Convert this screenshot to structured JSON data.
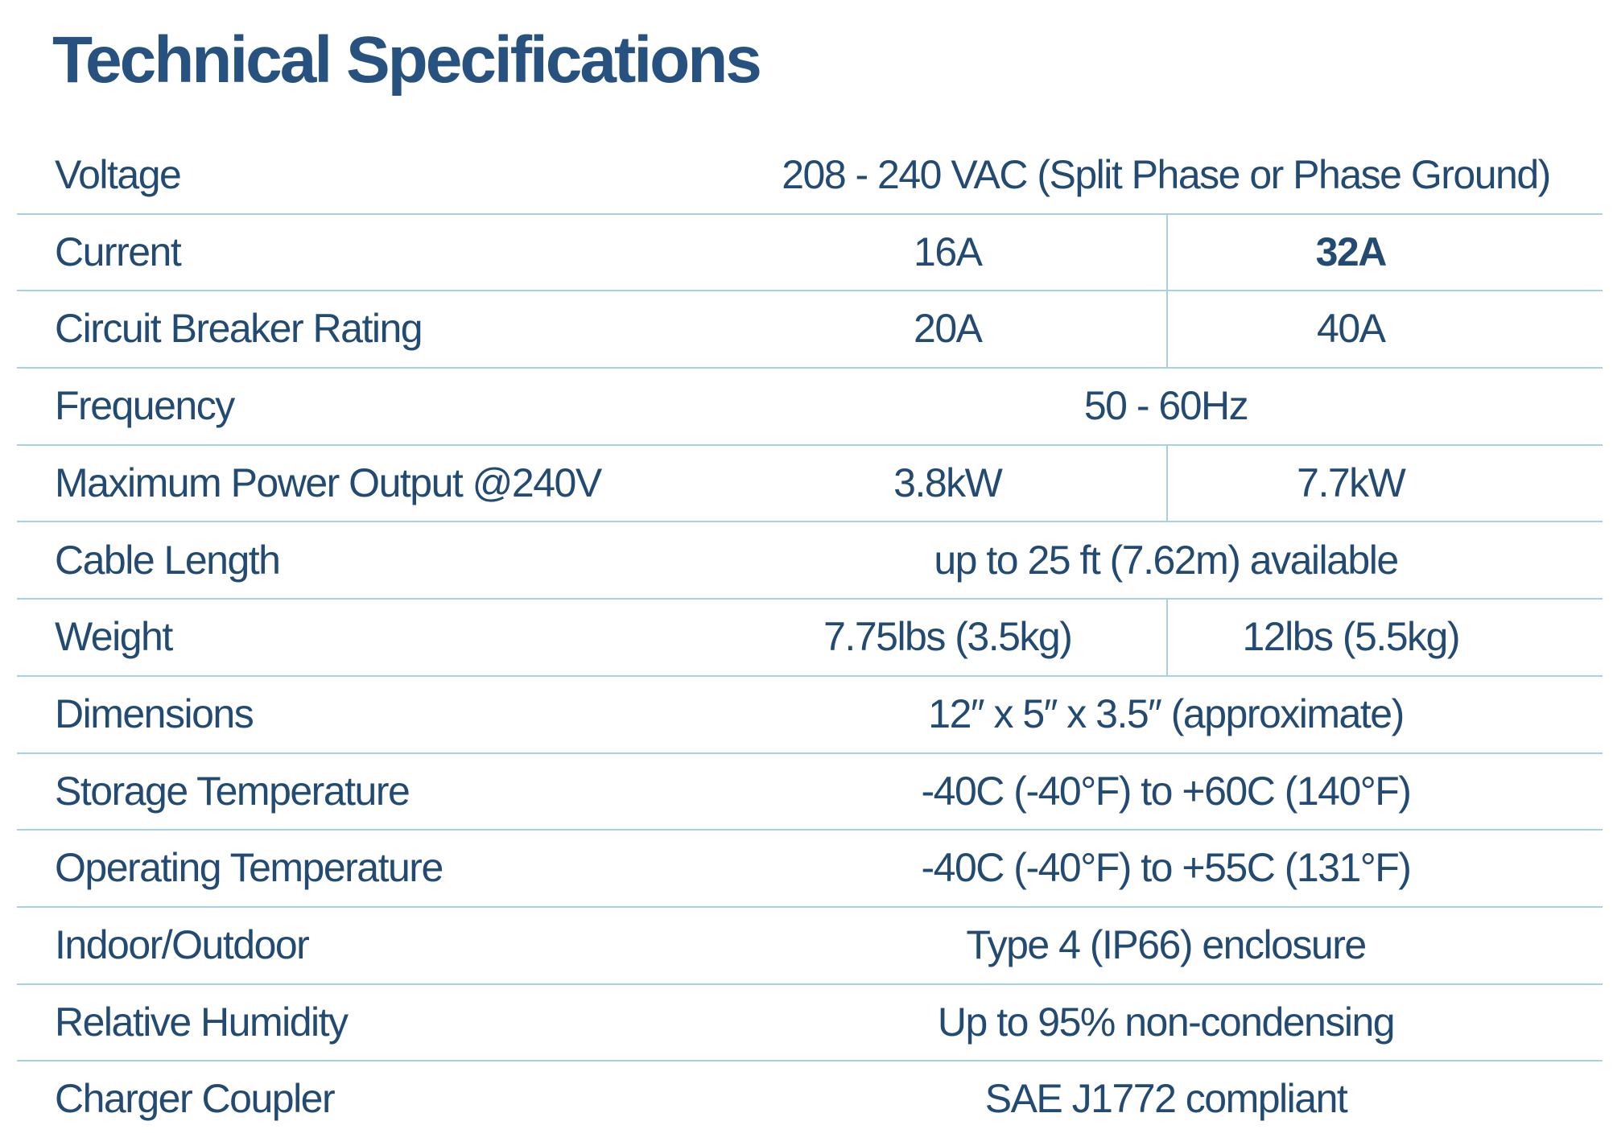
{
  "page": {
    "title": "Technical Specifications"
  },
  "colors": {
    "background": "#ffffff",
    "title_text": "#27527f",
    "body_text": "#224a72",
    "divider_line": "#a8cfe3"
  },
  "table": {
    "rows": [
      {
        "label": "Voltage",
        "value": "208 - 240 VAC (Split Phase or Phase Ground)"
      },
      {
        "label": "Current",
        "values": [
          "16A",
          "32A"
        ]
      },
      {
        "label": "Circuit Breaker Rating",
        "values": [
          "20A",
          "40A"
        ]
      },
      {
        "label": "Frequency",
        "value": "50 - 60Hz"
      },
      {
        "label": "Maximum Power Output @240V",
        "values": [
          "3.8kW",
          "7.7kW"
        ]
      },
      {
        "label": "Cable Length",
        "value": "up to 25 ft (7.62m) available"
      },
      {
        "label": "Weight",
        "values": [
          "7.75lbs (3.5kg)",
          "12lbs (5.5kg)"
        ]
      },
      {
        "label": "Dimensions",
        "value": "12″ x 5″ x 3.5″ (approximate)"
      },
      {
        "label": "Storage Temperature",
        "value": "-40C (-40°F) to +60C (140°F)"
      },
      {
        "label": "Operating Temperature",
        "value": "-40C (-40°F) to +55C (131°F)"
      },
      {
        "label": "Indoor/Outdoor",
        "value": "Type 4 (IP66) enclosure"
      },
      {
        "label": "Relative Humidity",
        "value": "Up to 95% non-condensing"
      },
      {
        "label": "Charger Coupler",
        "value": "SAE J1772 compliant"
      }
    ]
  }
}
